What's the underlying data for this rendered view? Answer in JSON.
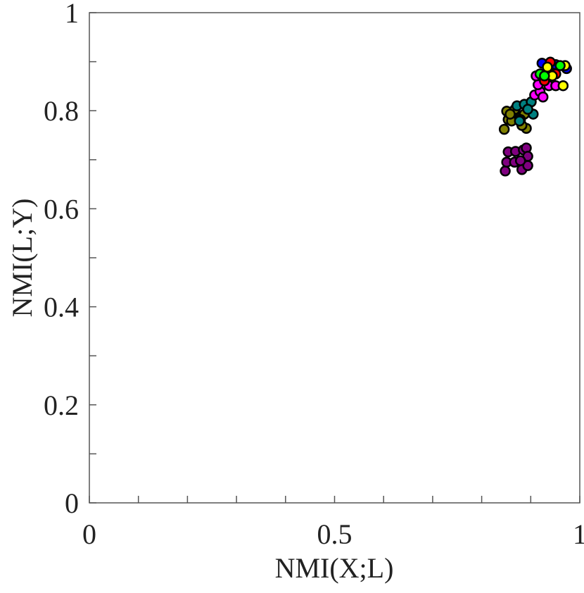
{
  "chart_data": {
    "type": "scatter",
    "xlabel": "NMI(X;L)",
    "ylabel": "NMI(L;Y)",
    "xlim": [
      0,
      1
    ],
    "ylim": [
      0,
      1
    ],
    "xticks": [
      0,
      0.5,
      1
    ],
    "yticks": [
      0,
      0.2,
      0.4,
      0.6,
      0.8,
      1
    ],
    "xminor_ticks": [
      0.1,
      0.2,
      0.3,
      0.4,
      0.6,
      0.7,
      0.8,
      0.9
    ],
    "yminor_ticks": [
      0.1,
      0.3,
      0.5,
      0.7,
      0.9
    ],
    "series": [
      {
        "color": "#800080",
        "x": [
          0.848,
          0.851,
          0.854,
          0.869,
          0.867,
          0.882,
          0.885,
          0.891,
          0.894,
          0.894,
          0.879
        ],
        "values": [
          0.677,
          0.695,
          0.716,
          0.717,
          0.695,
          0.68,
          0.72,
          0.724,
          0.707,
          0.688,
          0.698
        ]
      },
      {
        "color": "#808000",
        "x": [
          0.846,
          0.854,
          0.851,
          0.861,
          0.868,
          0.877,
          0.887,
          0.891,
          0.882,
          0.858
        ],
        "values": [
          0.762,
          0.782,
          0.799,
          0.779,
          0.803,
          0.785,
          0.793,
          0.764,
          0.77,
          0.793
        ]
      },
      {
        "color": "#008080",
        "x": [
          0.872,
          0.887,
          0.901,
          0.905,
          0.879,
          0.894,
          0.877
        ],
        "values": [
          0.81,
          0.813,
          0.818,
          0.793,
          0.782,
          0.803,
          0.779
        ]
      },
      {
        "color": "#ff00ff",
        "x": [
          0.908,
          0.919,
          0.925,
          0.915,
          0.937,
          0.951,
          0.911
        ],
        "values": [
          0.832,
          0.839,
          0.828,
          0.853,
          0.851,
          0.851,
          0.871
        ]
      },
      {
        "color": "#0000ff",
        "x": [
          0.923,
          0.937,
          0.973,
          0.951
        ],
        "values": [
          0.897,
          0.889,
          0.886,
          0.894
        ]
      },
      {
        "color": "#ff0000",
        "x": [
          0.94,
          0.928,
          0.951
        ],
        "values": [
          0.899,
          0.861,
          0.875
        ]
      },
      {
        "color": "#ffff00",
        "x": [
          0.934,
          0.966,
          0.97,
          0.944
        ],
        "values": [
          0.889,
          0.851,
          0.892,
          0.871
        ]
      },
      {
        "color": "#00ff00",
        "x": [
          0.919,
          0.96,
          0.928
        ],
        "values": [
          0.875,
          0.892,
          0.871
        ]
      }
    ]
  }
}
